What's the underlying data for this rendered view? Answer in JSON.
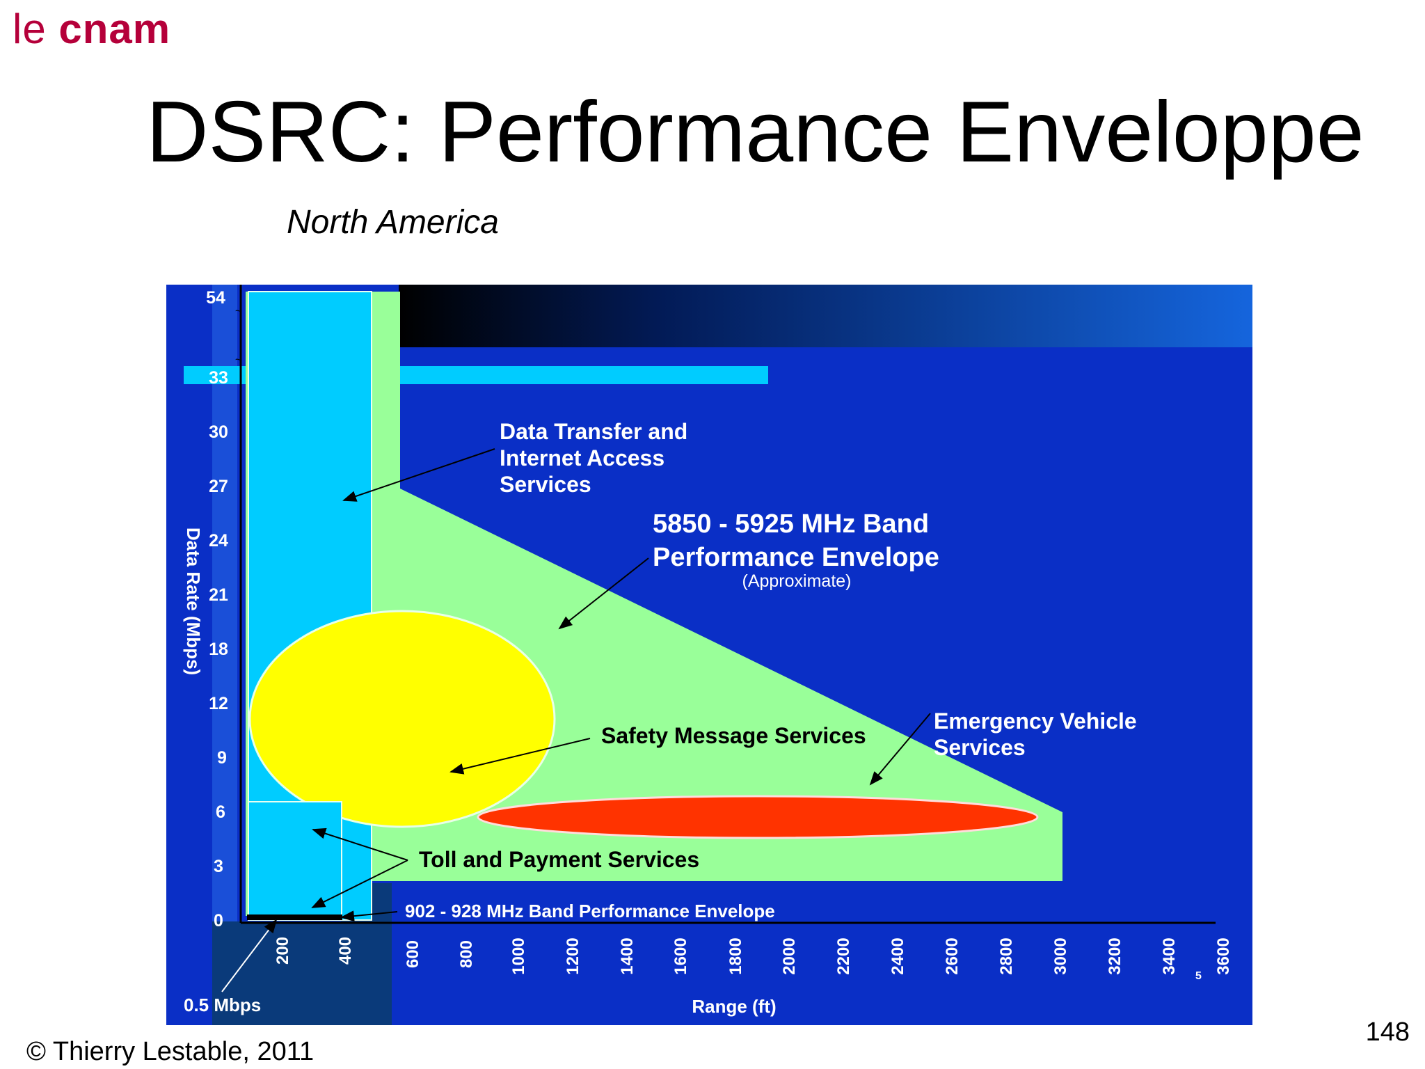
{
  "logo": {
    "part1": "le",
    "part2": "cnam"
  },
  "title": "DSRC: Performance Enveloppe",
  "subtitle": "North America",
  "footer": "© Thierry Lestable, 2011",
  "page_number": "148",
  "colors": {
    "background": "#0a2fc6",
    "band_5_9_envelope": "#99ff99",
    "data_transfer": "#00ccff",
    "safety": "#ffff00",
    "emergency": "#ff3300",
    "axis_panel": "#1a4fd8"
  },
  "chart_data": {
    "type": "diagram",
    "xlabel": "Range (ft)",
    "ylabel": "Data Rate (Mbps)",
    "x_ticks": [
      "200",
      "400",
      "600",
      "800",
      "1000",
      "1200",
      "1400",
      "1600",
      "1800",
      "2000",
      "2200",
      "2400",
      "2600",
      "2800",
      "3000",
      "3200",
      "3400",
      "3600"
    ],
    "y_ticks": [
      "54",
      "33",
      "30",
      "27",
      "24",
      "21",
      "18",
      "12",
      "9",
      "6",
      "3",
      "0"
    ],
    "min_rate_label": "0.5 Mbps",
    "axis_break_mark": "5",
    "annotations": {
      "data_transfer": [
        "Data Transfer and",
        "Internet Access",
        "Services"
      ],
      "band_5_9_title": [
        "5850 - 5925 MHz Band",
        "Performance Envelope"
      ],
      "band_5_9_note": "(Approximate)",
      "safety": "Safety Message Services",
      "emergency": [
        "Emergency Vehicle",
        "Services"
      ],
      "toll": "Toll and Payment Services",
      "band_900": "902 - 928 MHz  Band Performance Envelope"
    }
  }
}
